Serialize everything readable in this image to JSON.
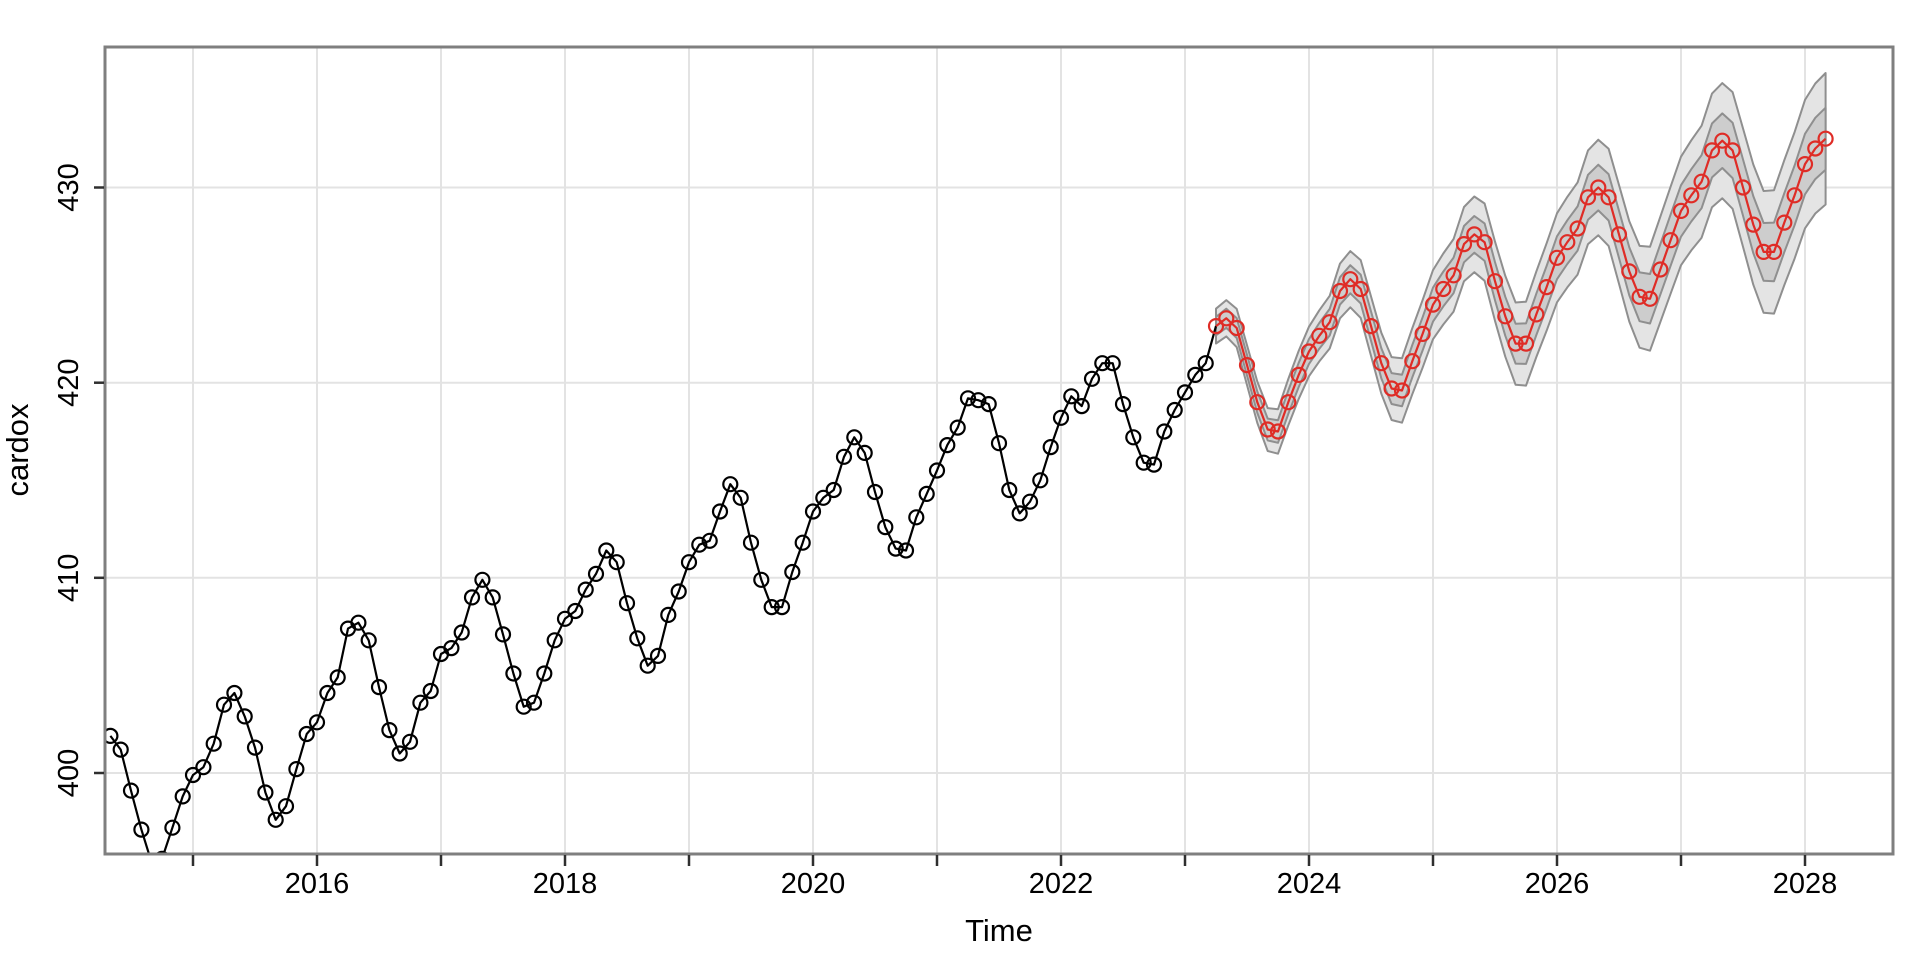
{
  "chart_data": {
    "type": "line",
    "title": "",
    "xlabel": "Time",
    "ylabel": "cardox",
    "xlim": [
      2014.29,
      2028.71
    ],
    "ylim": [
      395.85,
      437.2
    ],
    "grid": true,
    "legend": "none",
    "x_ticks_minor": [
      2015,
      2016,
      2017,
      2018,
      2019,
      2020,
      2021,
      2022,
      2023,
      2024,
      2025,
      2026,
      2027,
      2028
    ],
    "x_ticks_labeled": [
      2016,
      2018,
      2020,
      2022,
      2024,
      2026,
      2028
    ],
    "y_ticks": [
      400,
      410,
      420,
      430
    ],
    "series": [
      {
        "name": "observed",
        "color": "#000000",
        "marker": "open-circle",
        "start_time": 2014.3333,
        "frequency": 12,
        "values": [
          401.9,
          401.2,
          399.1,
          397.1,
          395.4,
          395.6,
          397.2,
          398.8,
          399.9,
          400.3,
          401.5,
          403.5,
          404.1,
          402.9,
          401.3,
          399.0,
          397.6,
          398.3,
          400.2,
          402.0,
          402.6,
          404.1,
          404.9,
          407.4,
          407.7,
          406.8,
          404.4,
          402.2,
          401.0,
          401.6,
          403.6,
          404.2,
          406.1,
          406.4,
          407.2,
          409.0,
          409.9,
          409.0,
          407.1,
          405.1,
          403.4,
          403.6,
          405.1,
          406.8,
          407.9,
          408.3,
          409.4,
          410.2,
          411.4,
          410.8,
          408.7,
          406.9,
          405.5,
          406.0,
          408.1,
          409.3,
          410.8,
          411.7,
          411.9,
          413.4,
          414.8,
          414.1,
          411.8,
          409.9,
          408.5,
          408.5,
          410.3,
          411.8,
          413.4,
          414.1,
          414.5,
          416.2,
          417.2,
          416.4,
          414.4,
          412.6,
          411.5,
          411.4,
          413.1,
          414.3,
          415.5,
          416.8,
          417.7,
          419.2,
          419.1,
          418.9,
          416.9,
          414.5,
          413.3,
          413.9,
          415.0,
          416.7,
          418.2,
          419.3,
          418.8,
          420.2,
          421.0,
          421.0,
          418.9,
          417.2,
          415.9,
          415.8,
          417.5,
          418.6,
          419.5,
          420.4,
          421.0
        ]
      },
      {
        "name": "forecast",
        "color": "#DF2C26",
        "marker": "open-circle",
        "start_time": 2023.25,
        "frequency": 12,
        "values": [
          422.9,
          423.3,
          422.8,
          420.9,
          419.0,
          417.6,
          417.5,
          419.0,
          420.4,
          421.6,
          422.4,
          423.1,
          424.7,
          425.3,
          424.8,
          422.9,
          421.0,
          419.7,
          419.6,
          421.1,
          422.5,
          424.0,
          424.8,
          425.5,
          427.1,
          427.6,
          427.2,
          425.2,
          423.4,
          422.0,
          422.0,
          423.5,
          424.9,
          426.4,
          427.2,
          427.9,
          429.5,
          430.0,
          429.5,
          427.6,
          425.7,
          424.4,
          424.3,
          425.8,
          427.3,
          428.8,
          429.6,
          430.3,
          431.9,
          432.4,
          431.9,
          430.0,
          428.1,
          426.7,
          426.7,
          428.2,
          429.6,
          431.2,
          432.0,
          432.5
        ]
      }
    ],
    "prediction_intervals": {
      "levels": [
        80,
        95
      ],
      "halfwidth_80": [
        0.47,
        0.49,
        0.51,
        0.53,
        0.55,
        0.56,
        0.58,
        0.6,
        0.62,
        0.64,
        0.66,
        0.68,
        0.7,
        0.72,
        0.74,
        0.75,
        0.77,
        0.79,
        0.81,
        0.83,
        0.85,
        0.87,
        0.89,
        0.91,
        0.93,
        0.94,
        0.96,
        0.98,
        1.0,
        1.02,
        1.04,
        1.06,
        1.08,
        1.1,
        1.12,
        1.13,
        1.15,
        1.17,
        1.19,
        1.21,
        1.23,
        1.25,
        1.27,
        1.29,
        1.31,
        1.32,
        1.34,
        1.36,
        1.38,
        1.4,
        1.42,
        1.44,
        1.46,
        1.48,
        1.5,
        1.51,
        1.53,
        1.55,
        1.57,
        1.59
      ],
      "halfwidth_95": [
        0.89,
        0.93,
        0.98,
        1.02,
        1.06,
        1.1,
        1.14,
        1.19,
        1.23,
        1.27,
        1.31,
        1.35,
        1.4,
        1.44,
        1.48,
        1.52,
        1.56,
        1.61,
        1.65,
        1.69,
        1.73,
        1.77,
        1.82,
        1.86,
        1.9,
        1.94,
        1.98,
        2.03,
        2.07,
        2.11,
        2.15,
        2.19,
        2.24,
        2.28,
        2.32,
        2.36,
        2.4,
        2.45,
        2.49,
        2.53,
        2.57,
        2.61,
        2.66,
        2.7,
        2.74,
        2.78,
        2.82,
        2.87,
        2.91,
        2.95,
        2.99,
        3.03,
        3.08,
        3.12,
        3.16,
        3.2,
        3.24,
        3.29,
        3.33,
        3.37
      ]
    },
    "style": {
      "observed_color": "#000000",
      "forecast_color": "#DF2C26",
      "band95_fill": "#e4e4e4",
      "band80_fill": "#cdcdcd",
      "band_edge_color": "#8f8f8f",
      "grid_color": "#e3e3e3",
      "frame_color": "#7f7f7f",
      "tick_color": "#2f2f2f"
    }
  }
}
